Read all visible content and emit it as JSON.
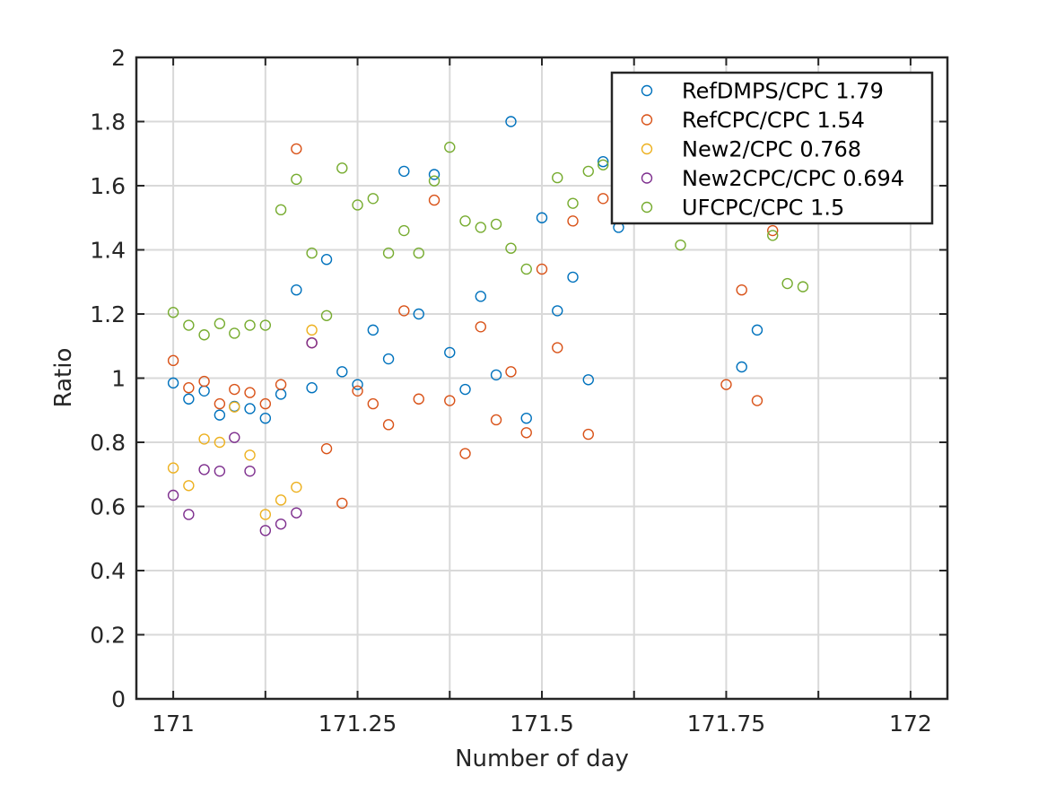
{
  "chart_data": {
    "type": "scatter",
    "xlabel": "Number of day",
    "ylabel": "Ratio",
    "xlim": [
      170.95,
      172.05
    ],
    "ylim": [
      0,
      2
    ],
    "xticks": [
      171,
      171.125,
      171.25,
      171.375,
      171.5,
      171.625,
      171.75,
      171.875,
      172
    ],
    "xtick_labels": [
      "171",
      "",
      "171.25",
      "",
      "171.5",
      "",
      "171.75",
      "",
      "172"
    ],
    "yticks": [
      0,
      0.2,
      0.4,
      0.6,
      0.8,
      1,
      1.2,
      1.4,
      1.6,
      1.8,
      2
    ],
    "ytick_labels": [
      "0",
      "0.2",
      "0.4",
      "0.6",
      "0.8",
      "1",
      "1.2",
      "1.4",
      "1.6",
      "1.8",
      "2"
    ],
    "grid": true,
    "marker": "open-circle",
    "legend_position": "top-right",
    "series": [
      {
        "name": "RefDMPS/CPC 1.79",
        "color": "#0072BD",
        "points": [
          [
            171.0,
            0.985
          ],
          [
            171.021,
            0.935
          ],
          [
            171.042,
            0.96
          ],
          [
            171.063,
            0.885
          ],
          [
            171.083,
            0.912
          ],
          [
            171.104,
            0.905
          ],
          [
            171.125,
            0.875
          ],
          [
            171.146,
            0.95
          ],
          [
            171.167,
            1.275
          ],
          [
            171.188,
            0.97
          ],
          [
            171.208,
            1.37
          ],
          [
            171.229,
            1.02
          ],
          [
            171.25,
            0.98
          ],
          [
            171.271,
            1.15
          ],
          [
            171.292,
            1.06
          ],
          [
            171.313,
            1.645
          ],
          [
            171.333,
            1.2
          ],
          [
            171.354,
            1.635
          ],
          [
            171.375,
            1.08
          ],
          [
            171.396,
            0.965
          ],
          [
            171.417,
            1.255
          ],
          [
            171.438,
            1.01
          ],
          [
            171.458,
            1.8
          ],
          [
            171.479,
            0.875
          ],
          [
            171.5,
            1.5
          ],
          [
            171.521,
            1.21
          ],
          [
            171.542,
            1.315
          ],
          [
            171.563,
            0.995
          ],
          [
            171.583,
            1.675
          ],
          [
            171.604,
            1.47
          ],
          [
            171.771,
            1.035
          ],
          [
            171.792,
            1.15
          ]
        ]
      },
      {
        "name": "RefCPC/CPC 1.54",
        "color": "#D95319",
        "points": [
          [
            171.0,
            1.055
          ],
          [
            171.021,
            0.97
          ],
          [
            171.042,
            0.99
          ],
          [
            171.063,
            0.92
          ],
          [
            171.083,
            0.965
          ],
          [
            171.104,
            0.955
          ],
          [
            171.125,
            0.92
          ],
          [
            171.146,
            0.98
          ],
          [
            171.167,
            1.715
          ],
          [
            171.188,
            1.11
          ],
          [
            171.208,
            0.78
          ],
          [
            171.229,
            0.61
          ],
          [
            171.25,
            0.96
          ],
          [
            171.271,
            0.92
          ],
          [
            171.292,
            0.855
          ],
          [
            171.313,
            1.21
          ],
          [
            171.333,
            0.935
          ],
          [
            171.354,
            1.555
          ],
          [
            171.375,
            0.93
          ],
          [
            171.396,
            0.765
          ],
          [
            171.417,
            1.16
          ],
          [
            171.438,
            0.87
          ],
          [
            171.458,
            1.02
          ],
          [
            171.479,
            0.83
          ],
          [
            171.5,
            1.34
          ],
          [
            171.521,
            1.095
          ],
          [
            171.542,
            1.49
          ],
          [
            171.563,
            0.825
          ],
          [
            171.583,
            1.56
          ],
          [
            171.75,
            0.98
          ],
          [
            171.771,
            1.275
          ],
          [
            171.792,
            0.93
          ],
          [
            171.813,
            1.46
          ]
        ]
      },
      {
        "name": "New2/CPC 0.768",
        "color": "#EDB120",
        "points": [
          [
            171.0,
            0.72
          ],
          [
            171.021,
            0.665
          ],
          [
            171.042,
            0.81
          ],
          [
            171.063,
            0.8
          ],
          [
            171.083,
            0.91
          ],
          [
            171.104,
            0.76
          ],
          [
            171.125,
            0.575
          ],
          [
            171.146,
            0.62
          ],
          [
            171.167,
            0.66
          ],
          [
            171.188,
            1.15
          ]
        ]
      },
      {
        "name": "New2CPC/CPC 0.694",
        "color": "#7E2F8E",
        "points": [
          [
            171.0,
            0.635
          ],
          [
            171.021,
            0.575
          ],
          [
            171.042,
            0.715
          ],
          [
            171.063,
            0.71
          ],
          [
            171.083,
            0.815
          ],
          [
            171.104,
            0.71
          ],
          [
            171.125,
            0.525
          ],
          [
            171.146,
            0.545
          ],
          [
            171.167,
            0.58
          ],
          [
            171.188,
            1.11
          ]
        ]
      },
      {
        "name": "UFCPC/CPC 1.5",
        "color": "#77AC30",
        "points": [
          [
            171.0,
            1.205
          ],
          [
            171.021,
            1.165
          ],
          [
            171.042,
            1.135
          ],
          [
            171.063,
            1.17
          ],
          [
            171.083,
            1.14
          ],
          [
            171.104,
            1.165
          ],
          [
            171.125,
            1.165
          ],
          [
            171.146,
            1.525
          ],
          [
            171.167,
            1.62
          ],
          [
            171.188,
            1.39
          ],
          [
            171.208,
            1.195
          ],
          [
            171.229,
            1.655
          ],
          [
            171.25,
            1.54
          ],
          [
            171.271,
            1.56
          ],
          [
            171.292,
            1.39
          ],
          [
            171.313,
            1.46
          ],
          [
            171.333,
            1.39
          ],
          [
            171.354,
            1.615
          ],
          [
            171.375,
            1.72
          ],
          [
            171.396,
            1.49
          ],
          [
            171.417,
            1.47
          ],
          [
            171.438,
            1.48
          ],
          [
            171.458,
            1.405
          ],
          [
            171.479,
            1.34
          ],
          [
            171.521,
            1.625
          ],
          [
            171.542,
            1.545
          ],
          [
            171.563,
            1.645
          ],
          [
            171.583,
            1.665
          ],
          [
            171.688,
            1.415
          ],
          [
            171.813,
            1.445
          ],
          [
            171.833,
            1.295
          ],
          [
            171.854,
            1.285
          ]
        ]
      }
    ]
  }
}
